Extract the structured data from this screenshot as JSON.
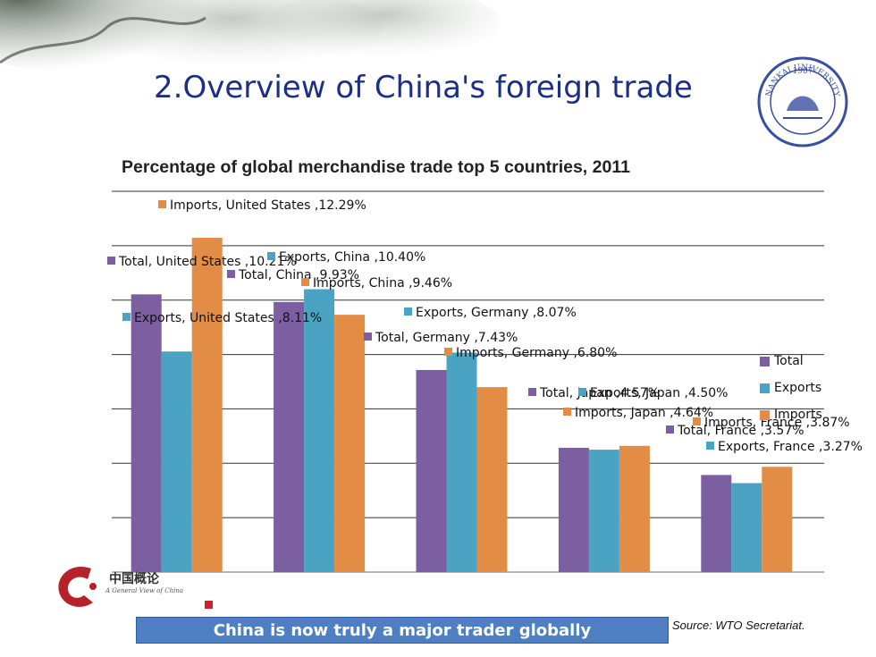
{
  "slide": {
    "title": "2.Overview of China's foreign trade",
    "banner": "China is now truly a major trader globally",
    "source": "Source: WTO Secretariat.",
    "logo_text": "中国概论",
    "logo_subtitle": "A General View of China",
    "seal_text": "1907"
  },
  "colors": {
    "total": "#7b5fa0",
    "exports": "#4aa3c3",
    "imports": "#e28c45",
    "title": "#1d2e86",
    "banner": "#4e7fc3"
  },
  "chart_data": {
    "type": "bar",
    "title": "Percentage of global merchandise trade top 5 countries, 2011",
    "categories": [
      "United States",
      "China",
      "Germany",
      "Japan",
      "France"
    ],
    "series": [
      {
        "name": "Total",
        "values": [
          10.21,
          9.93,
          7.43,
          4.57,
          3.57
        ]
      },
      {
        "name": "Exports",
        "values": [
          8.11,
          10.4,
          8.07,
          4.5,
          3.27
        ]
      },
      {
        "name": "Imports",
        "values": [
          12.29,
          9.46,
          6.8,
          4.64,
          3.87
        ]
      }
    ],
    "ylim": [
      0,
      14
    ],
    "grid": true,
    "legend_position": "right",
    "data_labels": [
      [
        "Total, United States ,10.21%",
        "Total, China ,9.93%",
        "Total, Germany ,7.43%",
        "Total, Japan ,4.57%",
        "Total, France ,3.57%"
      ],
      [
        "Exports, United States ,8.11%",
        "Exports, China ,10.40%",
        "Exports, Germany ,8.07%",
        "Exports, Japan ,4.50%",
        "Exports, France ,3.27%"
      ],
      [
        "Imports, United States ,12.29%",
        "Imports, China ,9.46%",
        "Imports, Germany ,6.80%",
        "Imports, Japan ,4.64%",
        "Imports, France ,3.87%"
      ]
    ]
  }
}
